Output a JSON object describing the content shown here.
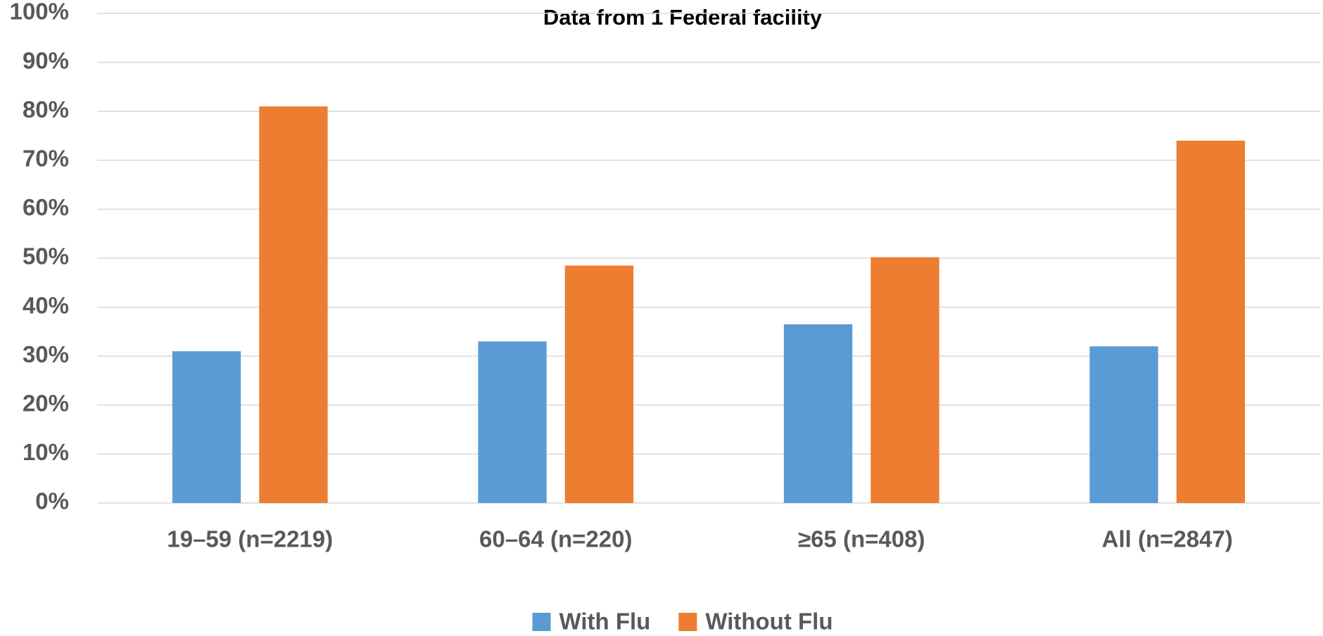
{
  "chart_data": {
    "type": "bar",
    "title": "Data from 1 Federal facility",
    "categories": [
      "19–59 (n=2219)",
      "60–64 (n=220)",
      "≥65  (n=408)",
      "All (n=2847)"
    ],
    "series": [
      {
        "name": "With Flu",
        "color": "#5b9bd5",
        "values": [
          31,
          33,
          36.5,
          32
        ]
      },
      {
        "name": "Without Flu",
        "color": "#ed7d31",
        "values": [
          81,
          48.5,
          50.2,
          74
        ]
      }
    ],
    "ylim": [
      0,
      100
    ],
    "yticks": [
      {
        "value": 0,
        "label": "0%"
      },
      {
        "value": 10,
        "label": "10%"
      },
      {
        "value": 20,
        "label": "20%"
      },
      {
        "value": 30,
        "label": "30%"
      },
      {
        "value": 40,
        "label": "40%"
      },
      {
        "value": 50,
        "label": "50%"
      },
      {
        "value": 60,
        "label": "60%"
      },
      {
        "value": 70,
        "label": "70%"
      },
      {
        "value": 80,
        "label": "80%"
      },
      {
        "value": 90,
        "label": "90%"
      },
      {
        "value": 100,
        "label": "100%"
      }
    ],
    "grid": true,
    "legend": "bottom"
  }
}
